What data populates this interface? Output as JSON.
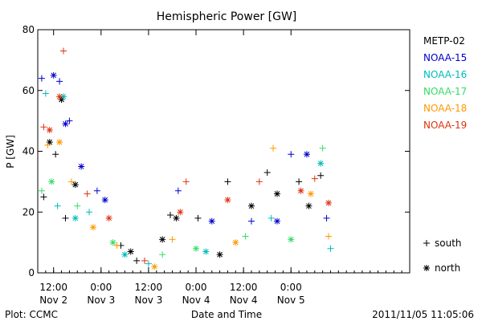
{
  "chart_data": {
    "type": "scatter",
    "title": "Hemispheric Power [GW]",
    "xlabel": "Date and Time",
    "ylabel": "P [GW]",
    "ylim": [
      0,
      80
    ],
    "xlim": [
      "2011-11-02T08:00",
      "2011-11-06T06:00"
    ],
    "y_ticks": [
      0,
      20,
      40,
      60,
      80
    ],
    "x_ticks": [
      {
        "at": "2011-11-02T12:00",
        "line1": "12:00",
        "line2": "Nov 2"
      },
      {
        "at": "2011-11-03T00:00",
        "line1": "0:00",
        "line2": "Nov 3"
      },
      {
        "at": "2011-11-03T12:00",
        "line1": "12:00",
        "line2": "Nov 3"
      },
      {
        "at": "2011-11-04T00:00",
        "line1": "0:00",
        "line2": "Nov 4"
      },
      {
        "at": "2011-11-04T12:00",
        "line1": "12:00",
        "line2": "Nov 4"
      },
      {
        "at": "2011-11-05T00:00",
        "line1": "0:00",
        "line2": "Nov 5"
      }
    ],
    "legend_position": "right",
    "marker_legend": [
      {
        "symbol": "+",
        "label": "south"
      },
      {
        "symbol": "*",
        "label": "north"
      }
    ],
    "grid": false,
    "series": [
      {
        "name": "METP-02",
        "color": "#000000",
        "marker": "mixed",
        "points": [
          [
            "2011-11-02T09:30",
            25
          ],
          [
            "2011-11-02T11:00",
            43
          ],
          [
            "2011-11-02T12:30",
            39
          ],
          [
            "2011-11-02T14:00",
            57
          ],
          [
            "2011-11-02T15:00",
            18
          ],
          [
            "2011-11-02T17:30",
            29
          ],
          [
            "2011-11-03T05:00",
            9
          ],
          [
            "2011-11-03T07:30",
            7
          ],
          [
            "2011-11-03T09:00",
            4
          ],
          [
            "2011-11-03T15:30",
            11
          ],
          [
            "2011-11-03T17:30",
            19
          ],
          [
            "2011-11-03T19:00",
            18
          ],
          [
            "2011-11-04T00:30",
            18
          ],
          [
            "2011-11-04T06:00",
            6
          ],
          [
            "2011-11-04T08:00",
            30
          ],
          [
            "2011-11-04T14:00",
            22
          ],
          [
            "2011-11-04T18:00",
            33
          ],
          [
            "2011-11-04T20:30",
            26
          ],
          [
            "2011-11-05T02:00",
            30
          ],
          [
            "2011-11-05T04:30",
            22
          ],
          [
            "2011-11-05T07:30",
            32
          ]
        ]
      },
      {
        "name": "NOAA-15",
        "color": "#0000cc",
        "marker": "mixed",
        "points": [
          [
            "2011-11-02T09:00",
            64
          ],
          [
            "2011-11-02T12:00",
            65
          ],
          [
            "2011-11-02T13:30",
            63
          ],
          [
            "2011-11-02T15:00",
            49
          ],
          [
            "2011-11-02T16:00",
            50
          ],
          [
            "2011-11-02T19:00",
            35
          ],
          [
            "2011-11-02T23:00",
            27
          ],
          [
            "2011-11-03T01:00",
            24
          ],
          [
            "2011-11-03T19:30",
            27
          ],
          [
            "2011-11-04T04:00",
            17
          ],
          [
            "2011-11-04T14:00",
            17
          ],
          [
            "2011-11-04T20:30",
            17
          ],
          [
            "2011-11-05T00:00",
            39
          ],
          [
            "2011-11-05T04:00",
            39
          ],
          [
            "2011-11-05T09:00",
            18
          ]
        ]
      },
      {
        "name": "NOAA-16",
        "color": "#00bbbb",
        "marker": "mixed",
        "points": [
          [
            "2011-11-02T10:00",
            59
          ],
          [
            "2011-11-02T14:30",
            58
          ],
          [
            "2011-11-02T13:00",
            22
          ],
          [
            "2011-11-02T17:30",
            18
          ],
          [
            "2011-11-02T21:00",
            20
          ],
          [
            "2011-11-03T06:00",
            6
          ],
          [
            "2011-11-03T12:00",
            3
          ],
          [
            "2011-11-04T02:30",
            7
          ],
          [
            "2011-11-04T19:00",
            18
          ],
          [
            "2011-11-05T07:30",
            36
          ],
          [
            "2011-11-05T10:00",
            8
          ]
        ]
      },
      {
        "name": "NOAA-17",
        "color": "#33dd66",
        "marker": "mixed",
        "points": [
          [
            "2011-11-02T09:00",
            27
          ],
          [
            "2011-11-02T11:30",
            30
          ],
          [
            "2011-11-02T18:00",
            22
          ],
          [
            "2011-11-03T03:00",
            10
          ],
          [
            "2011-11-03T15:30",
            6
          ],
          [
            "2011-11-04T00:00",
            8
          ],
          [
            "2011-11-04T12:30",
            12
          ],
          [
            "2011-11-05T00:00",
            11
          ],
          [
            "2011-11-05T08:00",
            41
          ]
        ]
      },
      {
        "name": "NOAA-18",
        "color": "#ff9900",
        "marker": "mixed",
        "points": [
          [
            "2011-11-02T10:30",
            42
          ],
          [
            "2011-11-02T13:30",
            43
          ],
          [
            "2011-11-02T16:30",
            30
          ],
          [
            "2011-11-02T22:00",
            15
          ],
          [
            "2011-11-03T04:00",
            9
          ],
          [
            "2011-11-03T13:30",
            2
          ],
          [
            "2011-11-03T18:00",
            11
          ],
          [
            "2011-11-04T10:00",
            10
          ],
          [
            "2011-11-04T19:30",
            41
          ],
          [
            "2011-11-05T05:00",
            26
          ],
          [
            "2011-11-05T09:30",
            12
          ]
        ]
      },
      {
        "name": "NOAA-19",
        "color": "#dd3311",
        "marker": "mixed",
        "points": [
          [
            "2011-11-02T09:30",
            48
          ],
          [
            "2011-11-02T11:00",
            47
          ],
          [
            "2011-11-02T14:30",
            73
          ],
          [
            "2011-11-02T13:30",
            58
          ],
          [
            "2011-11-02T20:30",
            26
          ],
          [
            "2011-11-03T02:00",
            18
          ],
          [
            "2011-11-03T11:00",
            4
          ],
          [
            "2011-11-03T20:00",
            20
          ],
          [
            "2011-11-03T21:30",
            30
          ],
          [
            "2011-11-04T08:00",
            24
          ],
          [
            "2011-11-04T16:00",
            30
          ],
          [
            "2011-11-05T02:30",
            27
          ],
          [
            "2011-11-05T06:00",
            31
          ],
          [
            "2011-11-05T09:30",
            23
          ]
        ]
      }
    ]
  },
  "footer": {
    "left": "Plot: CCMC",
    "right": "2011/11/05 11:05:06"
  }
}
